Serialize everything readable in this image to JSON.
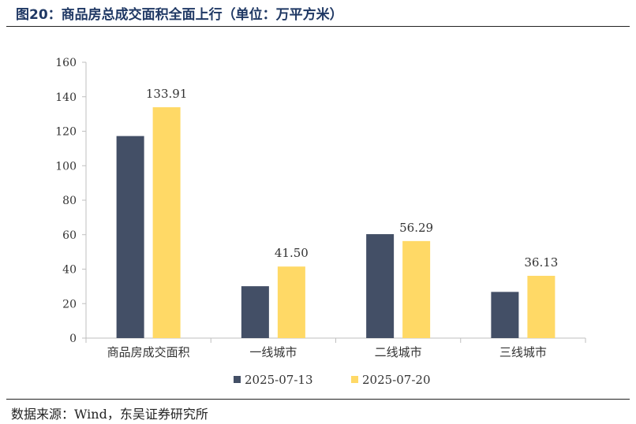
{
  "header": {
    "title": "图20：商品房总成交面积全面上行（单位：万平方米）"
  },
  "footer": {
    "source": "数据来源：Wind，东吴证券研究所"
  },
  "colors": {
    "series_1": "#434f66",
    "series_2": "#ffd966",
    "axis": "#bfbfbf",
    "text": "#333333"
  },
  "chart_data": {
    "type": "bar",
    "title": "",
    "xlabel": "",
    "ylabel": "",
    "ylim": [
      0,
      160
    ],
    "yticks": [
      "0",
      "20",
      "40",
      "60",
      "80",
      "100",
      "120",
      "140",
      "160"
    ],
    "grid": false,
    "legend_position": "bottom",
    "categories": [
      "商品房成交面积",
      "一线城市",
      "二线城市",
      "三线城市"
    ],
    "series": [
      {
        "name": "2025-07-13",
        "values": [
          117.2,
          30.1,
          60.3,
          26.8
        ],
        "labels": [
          "",
          "",
          "",
          ""
        ]
      },
      {
        "name": "2025-07-20",
        "values": [
          133.91,
          41.5,
          56.29,
          36.13
        ],
        "labels": [
          "133.91",
          "41.50",
          "56.29",
          "36.13"
        ]
      }
    ]
  }
}
